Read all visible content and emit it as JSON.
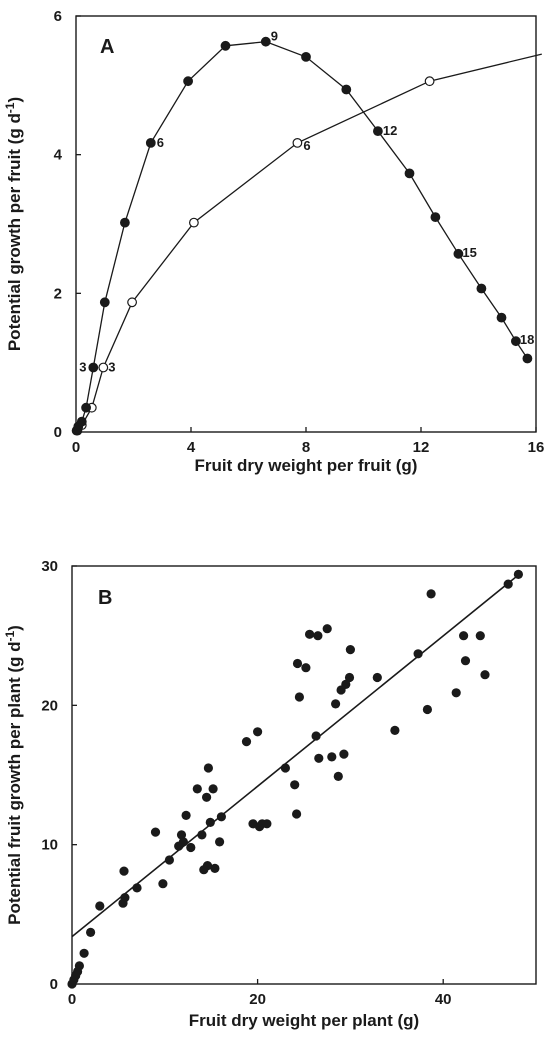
{
  "chart_data": [
    {
      "type": "line",
      "panel_label": "A",
      "xlabel": "Fruit dry weight per fruit (g)",
      "ylabel": "Potential growth per fruit (g d-1)",
      "xlim": [
        0,
        16
      ],
      "ylim": [
        0,
        6
      ],
      "xticks": [
        "0",
        "4",
        "8",
        "12",
        "16"
      ],
      "yticks": [
        "0",
        "2",
        "4",
        "6"
      ],
      "series": [
        {
          "marker": "filled",
          "x": [
            0.02,
            0.08,
            0.2,
            0.35,
            0.6,
            1.0,
            1.7,
            2.6,
            3.9,
            5.2,
            6.6,
            8.0,
            9.4,
            10.5,
            11.6,
            12.5,
            13.3,
            14.1,
            14.8,
            15.3,
            15.7
          ],
          "y": [
            0.02,
            0.08,
            0.15,
            0.35,
            0.93,
            1.87,
            3.02,
            4.17,
            5.06,
            5.57,
            5.63,
            5.41,
            4.94,
            4.34,
            3.73,
            3.1,
            2.57,
            2.07,
            1.65,
            1.31,
            1.06
          ]
        },
        {
          "marker": "open",
          "x": [
            0.05,
            0.2,
            0.55,
            0.95,
            1.95,
            4.1,
            7.7,
            12.3,
            16.2
          ],
          "y": [
            0.02,
            0.1,
            0.35,
            0.93,
            1.87,
            3.02,
            4.17,
            5.06,
            5.45
          ]
        }
      ],
      "annotations": [
        {
          "text": "9",
          "x": 6.6,
          "y": 5.63
        },
        {
          "text": "6",
          "x": 2.6,
          "y": 4.17
        },
        {
          "text": "12",
          "x": 10.5,
          "y": 4.34
        },
        {
          "text": "6",
          "x": 7.7,
          "y": 4.17
        },
        {
          "text": "15",
          "x": 13.3,
          "y": 2.57
        },
        {
          "text": "18",
          "x": 15.3,
          "y": 1.31
        },
        {
          "text": "3",
          "x": 0.6,
          "y": 0.93
        },
        {
          "text": "3",
          "x": 0.95,
          "y": 0.93
        }
      ]
    },
    {
      "type": "scatter",
      "panel_label": "B",
      "xlabel": "Fruit dry weight per plant (g)",
      "ylabel": "Potential fruit growth per plant (g d-1)",
      "xlim": [
        0,
        50
      ],
      "ylim": [
        0,
        30
      ],
      "xticks": [
        "0",
        "20",
        "40"
      ],
      "yticks": [
        "0",
        "10",
        "20",
        "30"
      ],
      "trendline": {
        "x": [
          0,
          48
        ],
        "y": [
          3.4,
          29.3
        ]
      },
      "points": [
        [
          0,
          0
        ],
        [
          0.2,
          0.3
        ],
        [
          0.4,
          0.6
        ],
        [
          0.6,
          0.9
        ],
        [
          0.8,
          1.3
        ],
        [
          1.3,
          2.2
        ],
        [
          2.0,
          3.7
        ],
        [
          3.0,
          5.6
        ],
        [
          5.5,
          5.8
        ],
        [
          5.7,
          6.2
        ],
        [
          5.6,
          8.1
        ],
        [
          7.0,
          6.9
        ],
        [
          9.0,
          10.9
        ],
        [
          9.8,
          7.2
        ],
        [
          10.5,
          8.9
        ],
        [
          11.5,
          9.9
        ],
        [
          11.8,
          10.7
        ],
        [
          12.0,
          10.2
        ],
        [
          12.3,
          12.1
        ],
        [
          12.8,
          9.8
        ],
        [
          13.5,
          14.0
        ],
        [
          14.0,
          10.7
        ],
        [
          14.2,
          8.2
        ],
        [
          14.5,
          13.4
        ],
        [
          14.6,
          8.5
        ],
        [
          14.7,
          15.5
        ],
        [
          14.9,
          11.6
        ],
        [
          15.2,
          14.0
        ],
        [
          15.4,
          8.3
        ],
        [
          15.9,
          10.2
        ],
        [
          16.1,
          12.0
        ],
        [
          18.8,
          17.4
        ],
        [
          19.5,
          11.5
        ],
        [
          20.0,
          18.1
        ],
        [
          20.2,
          11.3
        ],
        [
          20.5,
          11.5
        ],
        [
          21.0,
          11.5
        ],
        [
          23.0,
          15.5
        ],
        [
          24.0,
          14.3
        ],
        [
          24.2,
          12.2
        ],
        [
          24.3,
          23.0
        ],
        [
          24.5,
          20.6
        ],
        [
          25.2,
          22.7
        ],
        [
          25.6,
          25.1
        ],
        [
          26.3,
          17.8
        ],
        [
          26.5,
          25.0
        ],
        [
          26.6,
          16.2
        ],
        [
          27.5,
          25.5
        ],
        [
          28.0,
          16.3
        ],
        [
          28.4,
          20.1
        ],
        [
          28.7,
          14.9
        ],
        [
          29.0,
          21.1
        ],
        [
          29.3,
          16.5
        ],
        [
          29.5,
          21.5
        ],
        [
          29.9,
          22.0
        ],
        [
          30.0,
          24.0
        ],
        [
          32.9,
          22.0
        ],
        [
          34.8,
          18.2
        ],
        [
          37.3,
          23.7
        ],
        [
          38.3,
          19.7
        ],
        [
          38.7,
          28.0
        ],
        [
          41.4,
          20.9
        ],
        [
          42.2,
          25.0
        ],
        [
          42.4,
          23.2
        ],
        [
          44.0,
          25.0
        ],
        [
          44.5,
          22.2
        ],
        [
          47.0,
          28.7
        ],
        [
          48.1,
          29.4
        ]
      ]
    }
  ]
}
